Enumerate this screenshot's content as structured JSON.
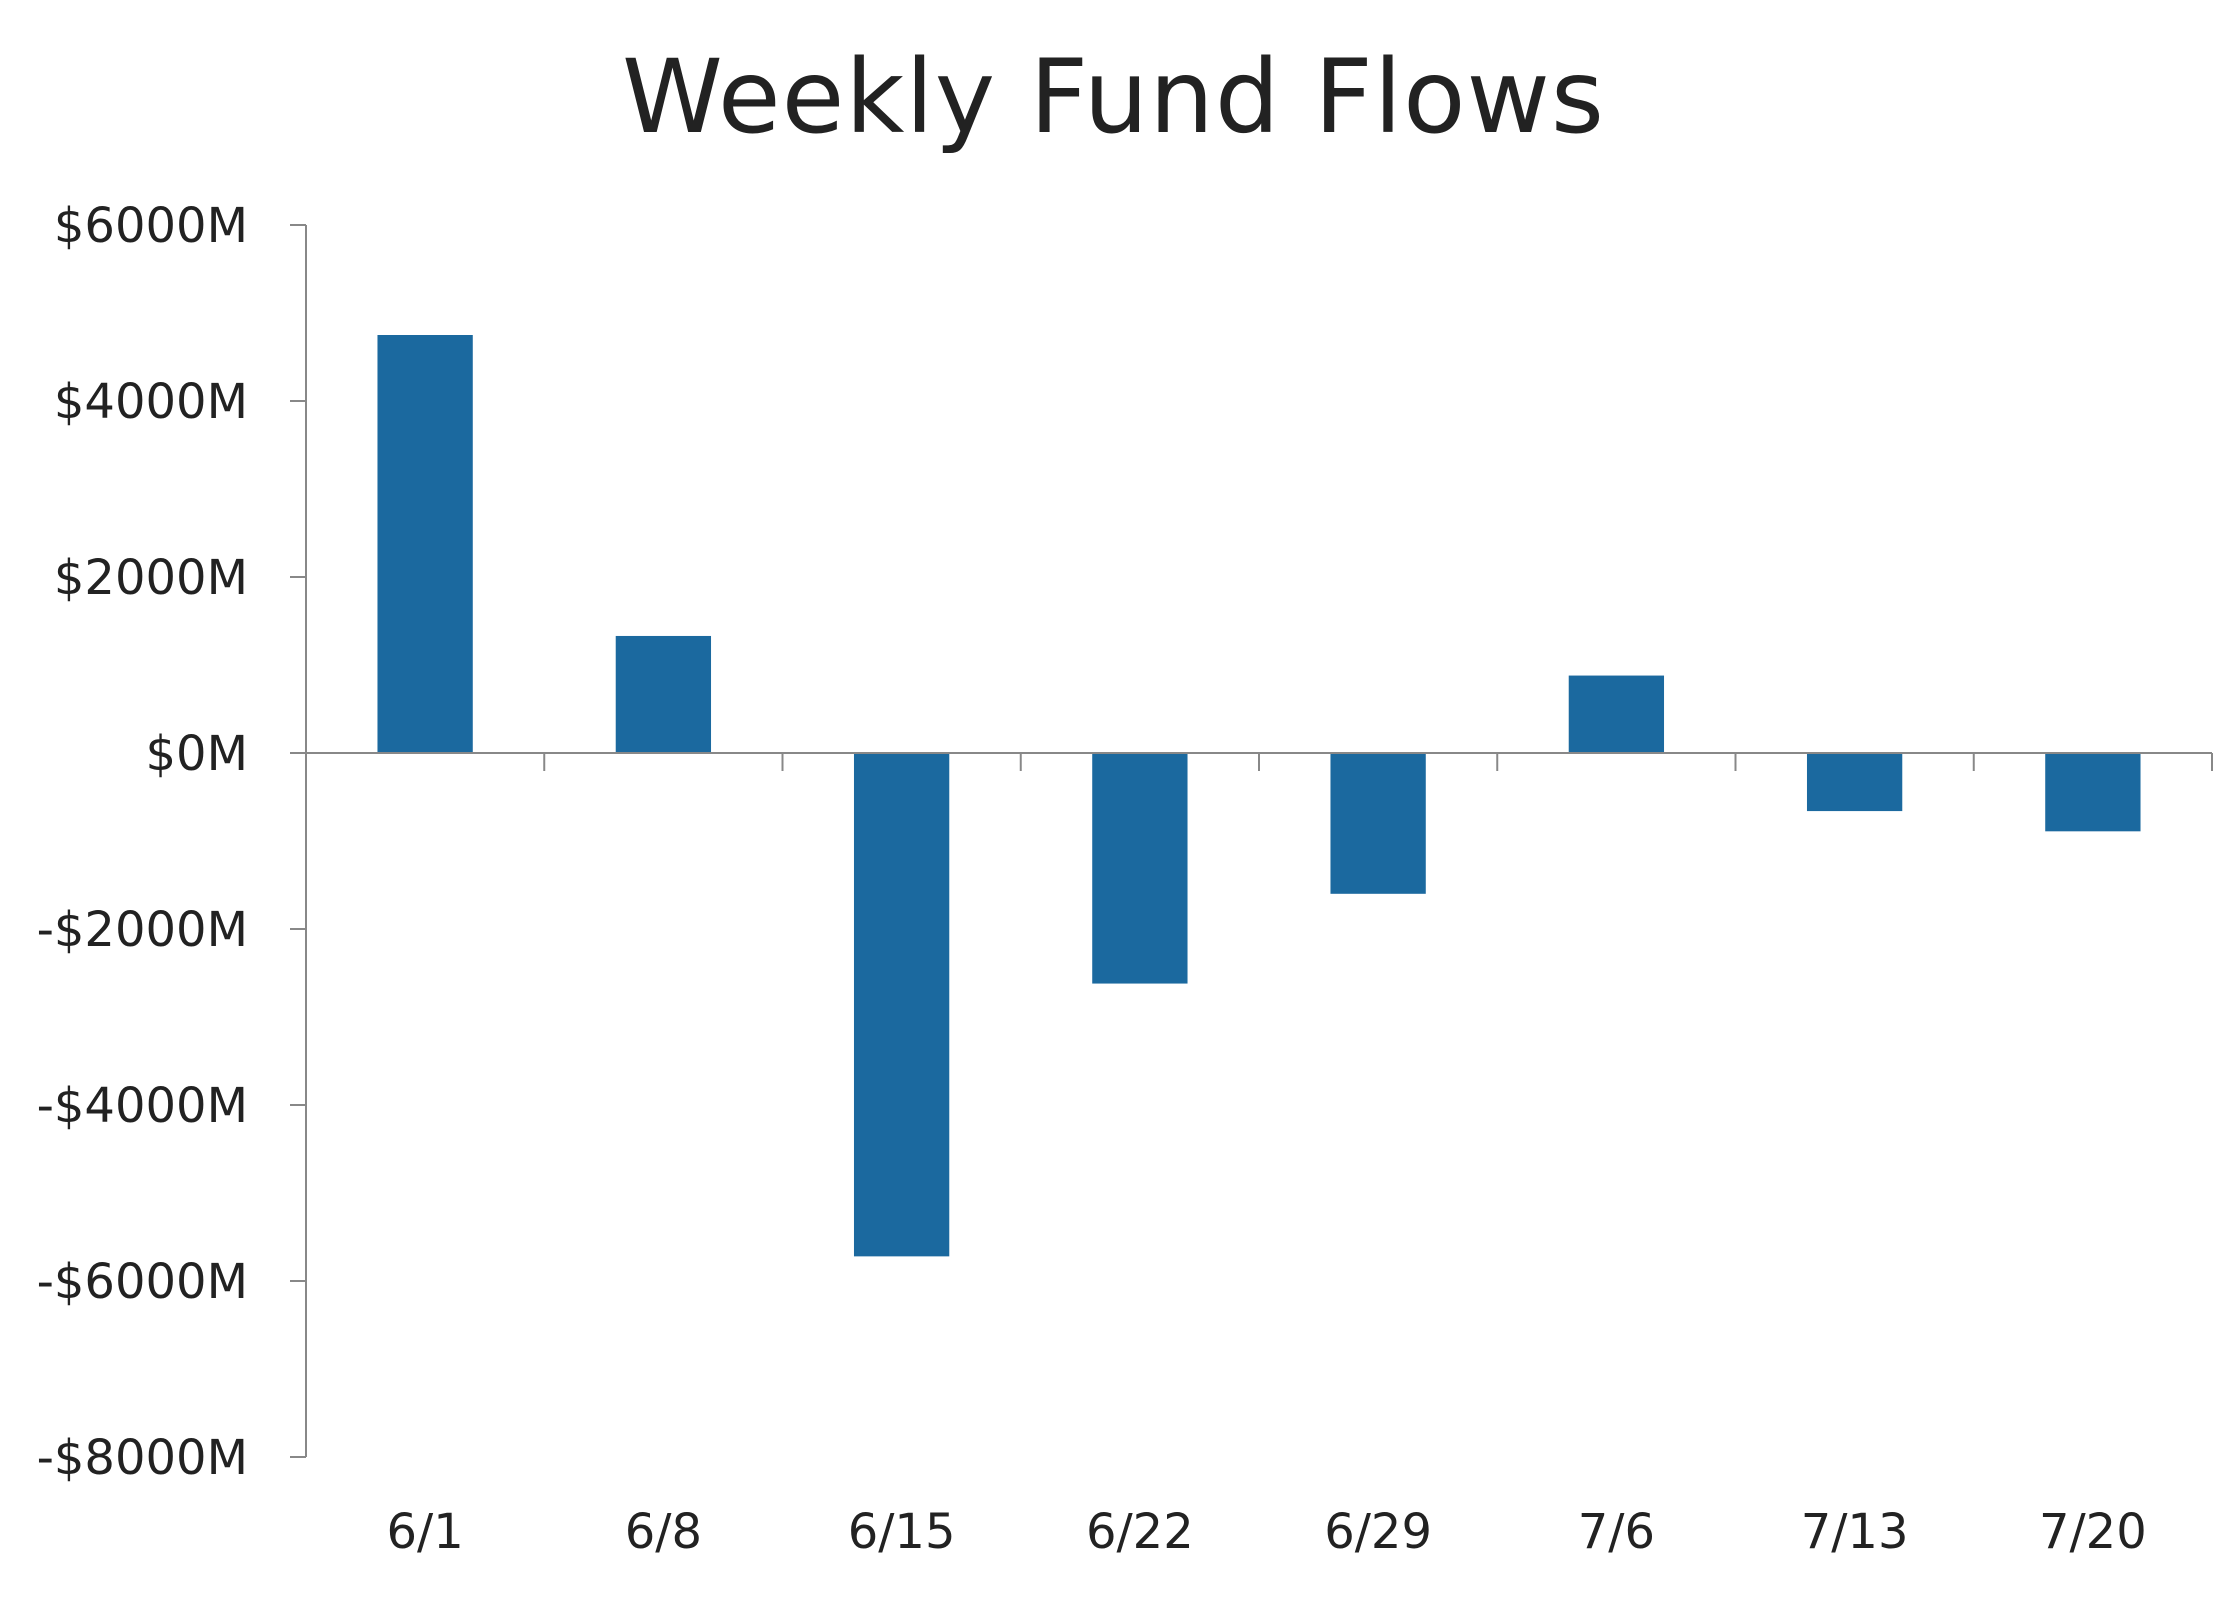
{
  "chart_data": {
    "type": "bar",
    "title": "Weekly Fund Flows",
    "xlabel": "",
    "ylabel": "",
    "categories": [
      "6/1",
      "6/8",
      "6/15",
      "6/22",
      "6/29",
      "7/6",
      "7/13",
      "7/20"
    ],
    "values": [
      4750,
      1330,
      -5720,
      -2620,
      -1600,
      880,
      -660,
      -890
    ],
    "ylim": [
      -8000,
      6000
    ],
    "yticks": [
      6000,
      4000,
      2000,
      0,
      -2000,
      -4000,
      -6000,
      -8000
    ],
    "ytick_labels": [
      "$6000M",
      "$4000M",
      "$2000M",
      "$0M",
      "-$2000M",
      "-$4000M",
      "-$6000M",
      "-$8000M"
    ],
    "grid": false,
    "legend": "none",
    "colors": {
      "bar": "#1b699f",
      "axis": "#888888",
      "text": "#222222"
    }
  }
}
